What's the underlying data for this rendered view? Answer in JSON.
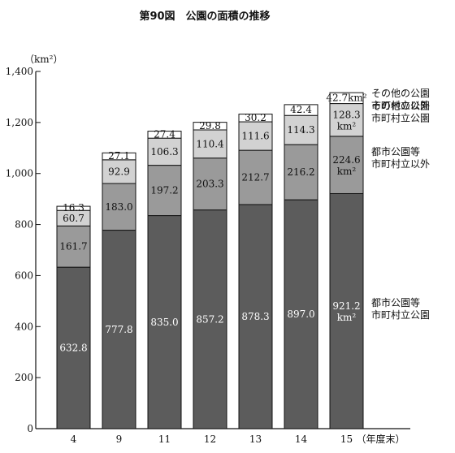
{
  "chart_data": {
    "type": "bar",
    "stacked": true,
    "title": "第90図　公園の面積の推移",
    "ylabel": "",
    "unit_label": "（km²）",
    "xlabel": "",
    "x_suffix": "（年度末）",
    "categories": [
      "4",
      "9",
      "11",
      "12",
      "13",
      "14",
      "15"
    ],
    "ylim": [
      0,
      1400
    ],
    "yticks": [
      0,
      200,
      400,
      600,
      800,
      1000,
      1200,
      1400
    ],
    "ytick_labels": [
      "0",
      "200",
      "400",
      "600",
      "800",
      "1,000",
      "1,200",
      "1,400"
    ],
    "grid": false,
    "series": [
      {
        "name": "都市公園等市町村立公園",
        "values": [
          632.8,
          777.8,
          835.0,
          857.2,
          878.3,
          897.0,
          921.2
        ],
        "labels": [
          "632.8",
          "777.8",
          "835.0",
          "857.2",
          "878.3",
          "897.0",
          "921.2"
        ],
        "last_unit": "km²",
        "color": "#5c5c5c",
        "label_color": "#ffffff"
      },
      {
        "name": "都市公園等市町村立以外",
        "values": [
          161.7,
          183.0,
          197.2,
          203.3,
          212.7,
          216.2,
          224.6
        ],
        "labels": [
          "161.7",
          "183.0",
          "197.2",
          "203.3",
          "212.7",
          "216.2",
          "224.6"
        ],
        "last_unit": "km²",
        "color": "#9a9a9a",
        "label_color": "#111111"
      },
      {
        "name": "その他の公園市町村立公園",
        "values": [
          60.7,
          92.9,
          106.3,
          110.4,
          111.6,
          114.3,
          128.3
        ],
        "labels": [
          "60.7",
          "92.9",
          "106.3",
          "110.4",
          "111.6",
          "114.3",
          "128.3"
        ],
        "last_unit": "km²",
        "color": "#d2d2d2",
        "label_color": "#111111"
      },
      {
        "name": "その他の公園市町村立以外",
        "values": [
          16.3,
          27.1,
          27.4,
          29.8,
          30.2,
          42.4,
          42.7
        ],
        "labels": [
          "16.3",
          "27.1",
          "27.4",
          "29.8",
          "30.2",
          "42.4",
          "42.7km²"
        ],
        "color": "#ffffff",
        "label_color": "#111111"
      }
    ],
    "legend": [
      {
        "line1": "都市公園等",
        "line2": "市町村立公園"
      },
      {
        "line1": "都市公園等",
        "line2": "市町村立以外"
      },
      {
        "line1": "その他の公園",
        "line2": "市町村立公園"
      },
      {
        "line1": "その他の公園",
        "line2": "市町村立以外"
      }
    ],
    "legend_position": "right"
  }
}
